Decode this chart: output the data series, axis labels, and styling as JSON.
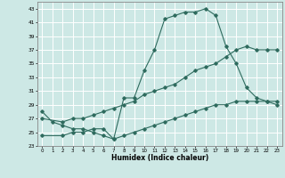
{
  "xlabel": "Humidex (Indice chaleur)",
  "ylabel": "",
  "bg_color": "#cde8e5",
  "grid_color": "#ffffff",
  "line_color": "#2e6b5e",
  "xlim": [
    -0.5,
    23.5
  ],
  "ylim": [
    23,
    44
  ],
  "xticks": [
    0,
    1,
    2,
    3,
    4,
    5,
    6,
    7,
    8,
    9,
    10,
    11,
    12,
    13,
    14,
    15,
    16,
    17,
    18,
    19,
    20,
    21,
    22,
    23
  ],
  "yticks": [
    23,
    25,
    27,
    29,
    31,
    33,
    35,
    37,
    39,
    41,
    43
  ],
  "line1_x": [
    0,
    1,
    2,
    3,
    4,
    5,
    6,
    7,
    8,
    9,
    10,
    11,
    12,
    13,
    14,
    15,
    16,
    17,
    18,
    19,
    20,
    21,
    22,
    23
  ],
  "line1_y": [
    28,
    26.5,
    26,
    25.5,
    25.5,
    25,
    24.5,
    24,
    30,
    30,
    34,
    37,
    41.5,
    42,
    42.5,
    42.5,
    43,
    42,
    37.5,
    35,
    31.5,
    30,
    29.5,
    29
  ],
  "line2_x": [
    0,
    2,
    3,
    4,
    5,
    6,
    7,
    8,
    9,
    10,
    11,
    12,
    13,
    14,
    15,
    16,
    17,
    18,
    19,
    20,
    21,
    22,
    23
  ],
  "line2_y": [
    27,
    26.5,
    27,
    27,
    27.5,
    28,
    28.5,
    29,
    29.5,
    30.5,
    31,
    31.5,
    32,
    33,
    34,
    34.5,
    35,
    36,
    37,
    37.5,
    37,
    37,
    37
  ],
  "line3_x": [
    0,
    2,
    3,
    4,
    5,
    6,
    7,
    8,
    9,
    10,
    11,
    12,
    13,
    14,
    15,
    16,
    17,
    18,
    19,
    20,
    21,
    22,
    23
  ],
  "line3_y": [
    24.5,
    24.5,
    25,
    25,
    25.5,
    25.5,
    24,
    24.5,
    25,
    25.5,
    26,
    26.5,
    27,
    27.5,
    28,
    28.5,
    29,
    29,
    29.5,
    29.5,
    29.5,
    29.5,
    29.5
  ]
}
